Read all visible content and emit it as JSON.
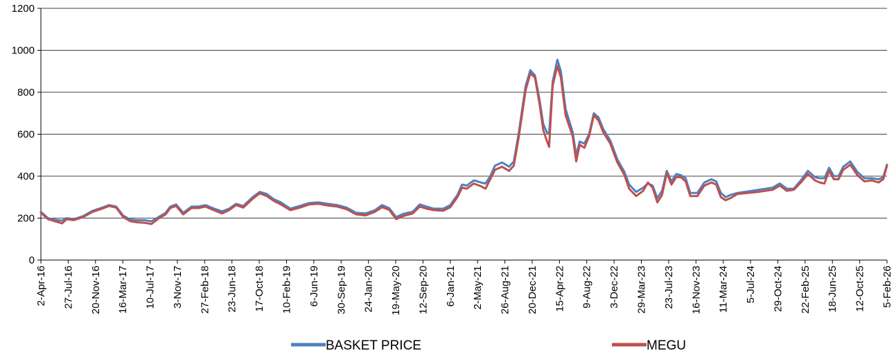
{
  "chart_data": {
    "type": "line",
    "title": "",
    "xlabel": "",
    "ylabel": "",
    "ylim": [
      0,
      1200
    ],
    "y_ticks": [
      0,
      200,
      400,
      600,
      800,
      1000,
      1200
    ],
    "grid": "horizontal",
    "legend": "bottom",
    "x_tick_labels": [
      "2-Apr-16",
      "27-Jul-16",
      "20-Nov-16",
      "16-Mar-17",
      "10-Jul-17",
      "3-Nov-17",
      "27-Feb-18",
      "23-Jun-18",
      "17-Oct-18",
      "10-Feb-19",
      "6-Jun-19",
      "30-Sep-19",
      "24-Jan-20",
      "19-May-20",
      "12-Sep-20",
      "6-Jan-21",
      "2-May-21",
      "26-Aug-21",
      "20-Dec-21",
      "15-Apr-22",
      "9-Aug-22",
      "3-Dec-22",
      "29-Mar-23",
      "23-Jul-23",
      "16-Nov-23",
      "11-Mar-24",
      "5-Jul-24",
      "29-Oct-24",
      "22-Feb-25",
      "18-Jun-25",
      "12-Oct-25",
      "5-Feb-26"
    ],
    "x_tick_values": [
      0,
      116,
      232,
      348,
      464,
      580,
      696,
      812,
      928,
      1044,
      1160,
      1276,
      1392,
      1508,
      1624,
      1740,
      1856,
      1972,
      2088,
      2204,
      2320,
      2436,
      2552,
      2668,
      2784,
      2900,
      3016,
      3132,
      3248,
      3364,
      3480,
      3596
    ],
    "x_unit": "days after 2-Apr-16",
    "series": [
      {
        "name": "BASKET PRICE",
        "color": "#4f81bd",
        "points": [
          [
            0,
            230
          ],
          [
            30,
            200
          ],
          [
            60,
            192
          ],
          [
            90,
            188
          ],
          [
            110,
            200
          ],
          [
            140,
            195
          ],
          [
            180,
            210
          ],
          [
            220,
            235
          ],
          [
            260,
            250
          ],
          [
            290,
            262
          ],
          [
            320,
            255
          ],
          [
            350,
            212
          ],
          [
            380,
            193
          ],
          [
            410,
            190
          ],
          [
            440,
            190
          ],
          [
            470,
            185
          ],
          [
            500,
            205
          ],
          [
            530,
            225
          ],
          [
            550,
            255
          ],
          [
            575,
            265
          ],
          [
            605,
            225
          ],
          [
            640,
            255
          ],
          [
            670,
            255
          ],
          [
            700,
            262
          ],
          [
            730,
            248
          ],
          [
            770,
            232
          ],
          [
            800,
            245
          ],
          [
            830,
            268
          ],
          [
            860,
            258
          ],
          [
            900,
            300
          ],
          [
            930,
            325
          ],
          [
            960,
            315
          ],
          [
            990,
            290
          ],
          [
            1020,
            275
          ],
          [
            1060,
            245
          ],
          [
            1100,
            258
          ],
          [
            1140,
            272
          ],
          [
            1180,
            275
          ],
          [
            1220,
            268
          ],
          [
            1260,
            262
          ],
          [
            1300,
            250
          ],
          [
            1340,
            225
          ],
          [
            1380,
            222
          ],
          [
            1420,
            238
          ],
          [
            1450,
            262
          ],
          [
            1480,
            248
          ],
          [
            1510,
            205
          ],
          [
            1540,
            220
          ],
          [
            1580,
            230
          ],
          [
            1610,
            265
          ],
          [
            1640,
            255
          ],
          [
            1670,
            245
          ],
          [
            1710,
            245
          ],
          [
            1740,
            262
          ],
          [
            1770,
            310
          ],
          [
            1790,
            360
          ],
          [
            1810,
            355
          ],
          [
            1840,
            380
          ],
          [
            1870,
            370
          ],
          [
            1890,
            365
          ],
          [
            1910,
            400
          ],
          [
            1930,
            450
          ],
          [
            1960,
            465
          ],
          [
            1990,
            445
          ],
          [
            2010,
            470
          ],
          [
            2030,
            600
          ],
          [
            2060,
            830
          ],
          [
            2080,
            905
          ],
          [
            2100,
            880
          ],
          [
            2120,
            760
          ],
          [
            2135,
            650
          ],
          [
            2150,
            610
          ],
          [
            2160,
            600
          ],
          [
            2175,
            850
          ],
          [
            2195,
            955
          ],
          [
            2210,
            900
          ],
          [
            2230,
            720
          ],
          [
            2260,
            610
          ],
          [
            2275,
            500
          ],
          [
            2290,
            565
          ],
          [
            2310,
            555
          ],
          [
            2330,
            600
          ],
          [
            2350,
            700
          ],
          [
            2370,
            680
          ],
          [
            2390,
            625
          ],
          [
            2420,
            570
          ],
          [
            2450,
            480
          ],
          [
            2480,
            420
          ],
          [
            2500,
            360
          ],
          [
            2530,
            325
          ],
          [
            2560,
            345
          ],
          [
            2580,
            365
          ],
          [
            2600,
            355
          ],
          [
            2620,
            295
          ],
          [
            2640,
            330
          ],
          [
            2660,
            425
          ],
          [
            2680,
            375
          ],
          [
            2700,
            410
          ],
          [
            2720,
            405
          ],
          [
            2740,
            390
          ],
          [
            2760,
            320
          ],
          [
            2790,
            320
          ],
          [
            2820,
            370
          ],
          [
            2850,
            385
          ],
          [
            2870,
            375
          ],
          [
            2890,
            320
          ],
          [
            2910,
            300
          ],
          [
            2930,
            310
          ],
          [
            2960,
            320
          ],
          [
            2990,
            325
          ],
          [
            3020,
            330
          ],
          [
            3050,
            335
          ],
          [
            3080,
            340
          ],
          [
            3110,
            345
          ],
          [
            3140,
            365
          ],
          [
            3170,
            340
          ],
          [
            3200,
            340
          ],
          [
            3230,
            380
          ],
          [
            3260,
            425
          ],
          [
            3290,
            395
          ],
          [
            3310,
            390
          ],
          [
            3330,
            390
          ],
          [
            3350,
            440
          ],
          [
            3370,
            400
          ],
          [
            3390,
            400
          ],
          [
            3410,
            445
          ],
          [
            3440,
            470
          ],
          [
            3470,
            420
          ],
          [
            3500,
            390
          ],
          [
            3530,
            390
          ],
          [
            3560,
            385
          ],
          [
            3580,
            395
          ],
          [
            3596,
            455
          ]
        ]
      },
      {
        "name": "MEGU",
        "color": "#c0504d",
        "points": [
          [
            0,
            225
          ],
          [
            30,
            195
          ],
          [
            60,
            185
          ],
          [
            90,
            175
          ],
          [
            110,
            195
          ],
          [
            140,
            190
          ],
          [
            180,
            205
          ],
          [
            220,
            230
          ],
          [
            260,
            245
          ],
          [
            290,
            258
          ],
          [
            320,
            250
          ],
          [
            350,
            205
          ],
          [
            380,
            185
          ],
          [
            410,
            180
          ],
          [
            440,
            178
          ],
          [
            470,
            172
          ],
          [
            500,
            198
          ],
          [
            530,
            218
          ],
          [
            550,
            248
          ],
          [
            575,
            258
          ],
          [
            605,
            218
          ],
          [
            640,
            248
          ],
          [
            670,
            248
          ],
          [
            700,
            255
          ],
          [
            730,
            240
          ],
          [
            770,
            222
          ],
          [
            800,
            238
          ],
          [
            830,
            262
          ],
          [
            860,
            250
          ],
          [
            900,
            292
          ],
          [
            930,
            318
          ],
          [
            960,
            305
          ],
          [
            990,
            282
          ],
          [
            1020,
            265
          ],
          [
            1060,
            238
          ],
          [
            1100,
            250
          ],
          [
            1140,
            265
          ],
          [
            1180,
            268
          ],
          [
            1220,
            260
          ],
          [
            1260,
            255
          ],
          [
            1300,
            242
          ],
          [
            1340,
            218
          ],
          [
            1380,
            213
          ],
          [
            1420,
            230
          ],
          [
            1450,
            252
          ],
          [
            1480,
            240
          ],
          [
            1510,
            195
          ],
          [
            1540,
            210
          ],
          [
            1580,
            222
          ],
          [
            1610,
            255
          ],
          [
            1640,
            245
          ],
          [
            1670,
            238
          ],
          [
            1710,
            235
          ],
          [
            1740,
            252
          ],
          [
            1770,
            300
          ],
          [
            1790,
            345
          ],
          [
            1810,
            340
          ],
          [
            1840,
            365
          ],
          [
            1870,
            352
          ],
          [
            1890,
            340
          ],
          [
            1910,
            385
          ],
          [
            1930,
            430
          ],
          [
            1960,
            445
          ],
          [
            1990,
            425
          ],
          [
            2010,
            450
          ],
          [
            2030,
            580
          ],
          [
            2060,
            810
          ],
          [
            2080,
            890
          ],
          [
            2100,
            870
          ],
          [
            2120,
            740
          ],
          [
            2135,
            620
          ],
          [
            2150,
            570
          ],
          [
            2160,
            540
          ],
          [
            2175,
            830
          ],
          [
            2195,
            925
          ],
          [
            2210,
            870
          ],
          [
            2230,
            690
          ],
          [
            2260,
            590
          ],
          [
            2275,
            470
          ],
          [
            2290,
            550
          ],
          [
            2310,
            535
          ],
          [
            2330,
            590
          ],
          [
            2350,
            690
          ],
          [
            2370,
            665
          ],
          [
            2390,
            610
          ],
          [
            2420,
            555
          ],
          [
            2450,
            465
          ],
          [
            2480,
            405
          ],
          [
            2500,
            340
          ],
          [
            2530,
            305
          ],
          [
            2560,
            330
          ],
          [
            2580,
            370
          ],
          [
            2600,
            345
          ],
          [
            2620,
            275
          ],
          [
            2640,
            310
          ],
          [
            2660,
            415
          ],
          [
            2680,
            360
          ],
          [
            2700,
            395
          ],
          [
            2720,
            395
          ],
          [
            2740,
            375
          ],
          [
            2760,
            305
          ],
          [
            2790,
            305
          ],
          [
            2820,
            355
          ],
          [
            2850,
            370
          ],
          [
            2870,
            360
          ],
          [
            2890,
            300
          ],
          [
            2910,
            285
          ],
          [
            2930,
            295
          ],
          [
            2960,
            315
          ],
          [
            2990,
            318
          ],
          [
            3020,
            322
          ],
          [
            3050,
            325
          ],
          [
            3080,
            330
          ],
          [
            3110,
            335
          ],
          [
            3140,
            355
          ],
          [
            3170,
            330
          ],
          [
            3200,
            335
          ],
          [
            3230,
            370
          ],
          [
            3260,
            410
          ],
          [
            3290,
            380
          ],
          [
            3310,
            370
          ],
          [
            3330,
            365
          ],
          [
            3350,
            425
          ],
          [
            3370,
            385
          ],
          [
            3390,
            385
          ],
          [
            3410,
            430
          ],
          [
            3440,
            455
          ],
          [
            3470,
            405
          ],
          [
            3500,
            375
          ],
          [
            3530,
            380
          ],
          [
            3560,
            370
          ],
          [
            3580,
            385
          ],
          [
            3596,
            450
          ]
        ]
      }
    ]
  }
}
